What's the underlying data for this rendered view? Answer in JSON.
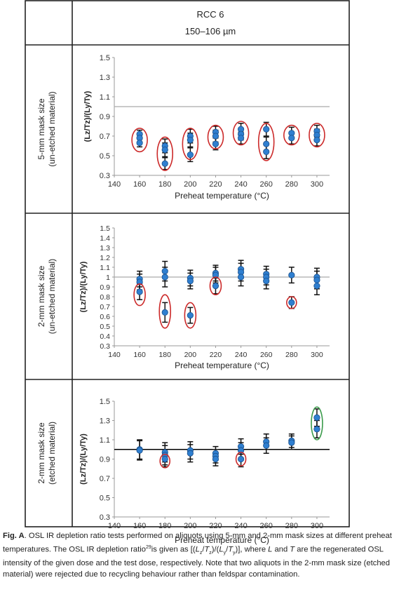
{
  "header": {
    "sample": "RCC 6",
    "grain_size": "150–106 µm"
  },
  "caption": {
    "label": "Fig. A",
    "part1": ". OSL IR depletion ratio tests performed on aliquots using 5-mm and 2-mm mask sizes at different preheat temperatures. The  OSL IR depletion ratio",
    "ref": "29",
    "part2": "is given as [(",
    "lz": "L",
    "z": "z",
    "slash1": "/",
    "tz": "T",
    "tzs": "z",
    "mid": ")/(",
    "ly": "L",
    "y": "y",
    "slash2": "/",
    "ty": "T",
    "tys": "y",
    "part3": ")], where ",
    "L": "L",
    "and": " and ",
    "T": "T",
    "part4": " are the regenerated OSL intensity of the given dose and the test dose, respectively. Note that two aliquots in the 2-mm mask size (etched material) were rejected due to recycling behaviour rather  than feldspar contamination."
  },
  "colors": {
    "point": "#2f7fd0",
    "red_ellipse": "#cc2a2a",
    "green_ellipse": "#3a9a4a",
    "grey_ref": "#aaaaaa",
    "black_ref": "#000000"
  },
  "chart_data": [
    {
      "type": "scatter",
      "row_label": [
        "5-mm mask size",
        "(un-etched material)"
      ],
      "ylabel": "(Lz/Tz)/(Ly/Ty)",
      "xlabel": "Preheat temperature (°C)",
      "xlim": [
        140,
        310
      ],
      "ylim": [
        0.3,
        1.5
      ],
      "x_ticks": [
        140,
        160,
        180,
        200,
        220,
        240,
        260,
        280,
        300
      ],
      "y_ticks": [
        "0.3",
        "0.5",
        "0.7",
        "0.9",
        "1.1",
        "1.3",
        "1.5"
      ],
      "y_tick_values": [
        0.3,
        0.5,
        0.7,
        0.9,
        1.1,
        1.3,
        1.5
      ],
      "reference_line": 1.0,
      "reference_style": "grey",
      "points": [
        {
          "x": 160,
          "y": 0.72,
          "err": 0.04
        },
        {
          "x": 160,
          "y": 0.68,
          "err": 0.04
        },
        {
          "x": 160,
          "y": 0.63,
          "err": 0.04
        },
        {
          "x": 180,
          "y": 0.6,
          "err": 0.07
        },
        {
          "x": 180,
          "y": 0.56,
          "err": 0.07
        },
        {
          "x": 180,
          "y": 0.42,
          "err": 0.06
        },
        {
          "x": 200,
          "y": 0.7,
          "err": 0.07
        },
        {
          "x": 200,
          "y": 0.66,
          "err": 0.07
        },
        {
          "x": 200,
          "y": 0.51,
          "err": 0.07
        },
        {
          "x": 220,
          "y": 0.74,
          "err": 0.06
        },
        {
          "x": 220,
          "y": 0.7,
          "err": 0.06
        },
        {
          "x": 220,
          "y": 0.62,
          "err": 0.06
        },
        {
          "x": 240,
          "y": 0.77,
          "err": 0.06
        },
        {
          "x": 240,
          "y": 0.72,
          "err": 0.06
        },
        {
          "x": 240,
          "y": 0.68,
          "err": 0.06
        },
        {
          "x": 260,
          "y": 0.77,
          "err": 0.07
        },
        {
          "x": 260,
          "y": 0.62,
          "err": 0.07
        },
        {
          "x": 260,
          "y": 0.54,
          "err": 0.07
        },
        {
          "x": 280,
          "y": 0.73,
          "err": 0.06
        },
        {
          "x": 280,
          "y": 0.68,
          "err": 0.06
        },
        {
          "x": 300,
          "y": 0.75,
          "err": 0.06
        },
        {
          "x": 300,
          "y": 0.71,
          "err": 0.06
        },
        {
          "x": 300,
          "y": 0.66,
          "err": 0.06
        }
      ],
      "ellipses": [
        {
          "x": 160,
          "y": 0.66,
          "rx": 11,
          "ry": 0.12,
          "color": "red"
        },
        {
          "x": 180,
          "y": 0.52,
          "rx": 11,
          "ry": 0.17,
          "color": "red"
        },
        {
          "x": 200,
          "y": 0.62,
          "rx": 11,
          "ry": 0.16,
          "color": "red"
        },
        {
          "x": 220,
          "y": 0.69,
          "rx": 11,
          "ry": 0.12,
          "color": "red"
        },
        {
          "x": 240,
          "y": 0.73,
          "rx": 11,
          "ry": 0.12,
          "color": "red"
        },
        {
          "x": 260,
          "y": 0.64,
          "rx": 11,
          "ry": 0.19,
          "color": "red"
        },
        {
          "x": 280,
          "y": 0.71,
          "rx": 11,
          "ry": 0.1,
          "color": "red"
        },
        {
          "x": 300,
          "y": 0.71,
          "rx": 11,
          "ry": 0.12,
          "color": "red"
        }
      ]
    },
    {
      "type": "scatter",
      "row_label": [
        "2-mm mask size",
        "(un-etched material)"
      ],
      "ylabel": "(Lz/Tz)/(Ly/Ty)",
      "xlabel": "Preheat temperature (°C)",
      "xlim": [
        140,
        310
      ],
      "ylim": [
        0.3,
        1.5
      ],
      "x_ticks": [
        140,
        160,
        180,
        200,
        220,
        240,
        260,
        280,
        300
      ],
      "y_ticks": [
        "0.3",
        "0.4",
        "0.5",
        "0.6",
        "0.7",
        "0.8",
        "0.9",
        "1",
        "1.1",
        "1.2",
        "1.3",
        "1.4",
        "1.5"
      ],
      "y_tick_values": [
        0.3,
        0.4,
        0.5,
        0.6,
        0.7,
        0.8,
        0.9,
        1.0,
        1.1,
        1.2,
        1.3,
        1.4,
        1.5
      ],
      "reference_line": 1.0,
      "reference_style": "grey",
      "points": [
        {
          "x": 160,
          "y": 0.98,
          "err": 0.08
        },
        {
          "x": 160,
          "y": 0.95,
          "err": 0.08
        },
        {
          "x": 160,
          "y": 0.85,
          "err": 0.08
        },
        {
          "x": 180,
          "y": 1.06,
          "err": 0.1
        },
        {
          "x": 180,
          "y": 1.0,
          "err": 0.1
        },
        {
          "x": 180,
          "y": 0.64,
          "err": 0.1
        },
        {
          "x": 200,
          "y": 0.99,
          "err": 0.08
        },
        {
          "x": 200,
          "y": 0.96,
          "err": 0.08
        },
        {
          "x": 200,
          "y": 0.61,
          "err": 0.08
        },
        {
          "x": 220,
          "y": 1.04,
          "err": 0.08
        },
        {
          "x": 220,
          "y": 1.02,
          "err": 0.08
        },
        {
          "x": 220,
          "y": 0.91,
          "err": 0.08
        },
        {
          "x": 240,
          "y": 1.08,
          "err": 0.09
        },
        {
          "x": 240,
          "y": 1.05,
          "err": 0.09
        },
        {
          "x": 240,
          "y": 1.0,
          "err": 0.09
        },
        {
          "x": 260,
          "y": 1.03,
          "err": 0.08
        },
        {
          "x": 260,
          "y": 1.0,
          "err": 0.08
        },
        {
          "x": 260,
          "y": 0.96,
          "err": 0.08
        },
        {
          "x": 280,
          "y": 1.02,
          "err": 0.08
        },
        {
          "x": 280,
          "y": 0.74,
          "err": 0.06
        },
        {
          "x": 300,
          "y": 1.0,
          "err": 0.09
        },
        {
          "x": 300,
          "y": 0.97,
          "err": 0.09
        },
        {
          "x": 300,
          "y": 0.91,
          "err": 0.09
        }
      ],
      "ellipses": [
        {
          "x": 160,
          "y": 0.82,
          "rx": 8,
          "ry": 0.11,
          "color": "red"
        },
        {
          "x": 180,
          "y": 0.65,
          "rx": 8,
          "ry": 0.17,
          "color": "red"
        },
        {
          "x": 200,
          "y": 0.61,
          "rx": 8,
          "ry": 0.13,
          "color": "red"
        },
        {
          "x": 220,
          "y": 0.91,
          "rx": 8,
          "ry": 0.09,
          "color": "red"
        },
        {
          "x": 280,
          "y": 0.74,
          "rx": 7,
          "ry": 0.06,
          "color": "red"
        }
      ]
    },
    {
      "type": "scatter",
      "row_label": [
        "2-mm mask size",
        "(etched material)"
      ],
      "ylabel": "(Lz/Tz)/(Ly/Ty)",
      "xlabel": "Preheat temperature (°C)",
      "xlim": [
        140,
        310
      ],
      "ylim": [
        0.3,
        1.5
      ],
      "x_ticks": [
        140,
        160,
        180,
        200,
        220,
        240,
        260,
        280,
        300
      ],
      "y_ticks": [
        "0.3",
        "0.5",
        "0.7",
        "0.9",
        "1.1",
        "1.3",
        "1.5"
      ],
      "y_tick_values": [
        0.3,
        0.5,
        0.7,
        0.9,
        1.1,
        1.3,
        1.5
      ],
      "reference_line": 1.0,
      "reference_style": "black",
      "points": [
        {
          "x": 160,
          "y": 1.0,
          "err": 0.1
        },
        {
          "x": 160,
          "y": 0.99,
          "err": 0.1
        },
        {
          "x": 180,
          "y": 0.97,
          "err": 0.1
        },
        {
          "x": 180,
          "y": 0.94,
          "err": 0.1
        },
        {
          "x": 180,
          "y": 0.9,
          "err": 0.08
        },
        {
          "x": 200,
          "y": 0.99,
          "err": 0.09
        },
        {
          "x": 200,
          "y": 0.96,
          "err": 0.09
        },
        {
          "x": 220,
          "y": 0.96,
          "err": 0.07
        },
        {
          "x": 220,
          "y": 0.93,
          "err": 0.07
        },
        {
          "x": 220,
          "y": 0.9,
          "err": 0.07
        },
        {
          "x": 240,
          "y": 1.03,
          "err": 0.08
        },
        {
          "x": 240,
          "y": 0.99,
          "err": 0.08
        },
        {
          "x": 240,
          "y": 0.9,
          "err": 0.08
        },
        {
          "x": 260,
          "y": 1.08,
          "err": 0.08
        },
        {
          "x": 260,
          "y": 1.04,
          "err": 0.08
        },
        {
          "x": 280,
          "y": 1.09,
          "err": 0.07
        },
        {
          "x": 280,
          "y": 1.07,
          "err": 0.07
        },
        {
          "x": 300,
          "y": 1.33,
          "err": 0.09
        },
        {
          "x": 300,
          "y": 1.21,
          "err": 0.09
        }
      ],
      "ellipses": [
        {
          "x": 180,
          "y": 0.88,
          "rx": 7,
          "ry": 0.07,
          "color": "red"
        },
        {
          "x": 240,
          "y": 0.9,
          "rx": 7,
          "ry": 0.07,
          "color": "red"
        },
        {
          "x": 300,
          "y": 1.27,
          "rx": 8,
          "ry": 0.17,
          "color": "green"
        }
      ]
    }
  ]
}
